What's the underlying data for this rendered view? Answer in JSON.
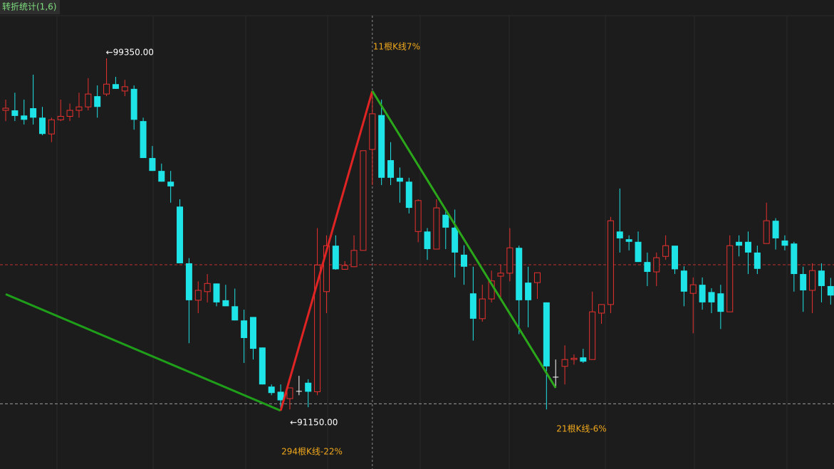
{
  "chart_data": {
    "type": "candlestick",
    "title": "转折统计(1,6)",
    "colors": {
      "up": "#e8312f",
      "down": "#1ee4e8",
      "flat": "#ffffff"
    },
    "candles": [
      [
        98140,
        98390,
        97890,
        98190
      ],
      [
        98140,
        98550,
        97890,
        98010
      ],
      [
        98020,
        98390,
        97810,
        97920
      ],
      [
        98190,
        98970,
        97810,
        97970
      ],
      [
        97970,
        98220,
        97560,
        97590
      ],
      [
        97590,
        97970,
        97400,
        97920
      ],
      [
        97920,
        98390,
        97890,
        98000
      ],
      [
        98000,
        98300,
        97890,
        98140
      ],
      [
        98140,
        98550,
        97970,
        98220
      ],
      [
        98220,
        98890,
        98140,
        98520
      ],
      [
        98470,
        98720,
        97970,
        98220
      ],
      [
        98520,
        99350,
        98470,
        98750
      ],
      [
        98750,
        98920,
        98640,
        98640
      ],
      [
        98590,
        98850,
        98470,
        98690
      ],
      [
        98640,
        98720,
        97690,
        97920
      ],
      [
        97890,
        97970,
        97030,
        97030
      ],
      [
        97030,
        97310,
        96730,
        96730
      ],
      [
        96730,
        96900,
        96480,
        96480
      ],
      [
        96480,
        96730,
        95990,
        96370
      ],
      [
        95900,
        96070,
        94580,
        94580
      ],
      [
        94580,
        94700,
        92720,
        93720
      ],
      [
        93720,
        94160,
        93420,
        93950
      ],
      [
        93920,
        94330,
        93670,
        94110
      ],
      [
        94110,
        94110,
        93580,
        93670
      ],
      [
        93720,
        94080,
        93580,
        93580
      ],
      [
        93580,
        93990,
        93250,
        93250
      ],
      [
        93250,
        93500,
        92260,
        92840
      ],
      [
        93330,
        93330,
        92340,
        92590
      ],
      [
        92620,
        92620,
        91760,
        91760
      ],
      [
        91710,
        91760,
        91510,
        91560
      ],
      [
        91590,
        91760,
        91150,
        91390
      ],
      [
        91430,
        91680,
        91180,
        91680
      ],
      [
        91600,
        91960,
        91510,
        91600
      ],
      [
        91800,
        91880,
        91230,
        91590
      ],
      [
        91590,
        95400,
        91510,
        94540
      ],
      [
        93920,
        95230,
        93420,
        94990
      ],
      [
        94990,
        95230,
        94430,
        94440
      ],
      [
        94440,
        94630,
        94430,
        94530
      ],
      [
        94500,
        95230,
        94490,
        94880
      ],
      [
        94880,
        97200,
        94880,
        97200
      ],
      [
        97230,
        98590,
        96400,
        98060
      ],
      [
        98030,
        98390,
        96400,
        96570
      ],
      [
        96980,
        97400,
        96400,
        96570
      ],
      [
        96570,
        96810,
        95990,
        96480
      ],
      [
        96480,
        96570,
        95740,
        95870
      ],
      [
        95320,
        96070,
        95070,
        96040
      ],
      [
        95320,
        95400,
        94660,
        94910
      ],
      [
        94910,
        96070,
        94910,
        95870
      ],
      [
        95710,
        95830,
        94910,
        95410
      ],
      [
        95410,
        95830,
        94250,
        94830
      ],
      [
        94780,
        95000,
        94080,
        94500
      ],
      [
        93880,
        94500,
        92780,
        93290
      ],
      [
        93290,
        94080,
        93220,
        93750
      ],
      [
        93750,
        94410,
        93670,
        94170
      ],
      [
        94280,
        94550,
        93750,
        94350
      ],
      [
        94350,
        95400,
        94160,
        94940
      ],
      [
        94940,
        94990,
        92930,
        93720
      ],
      [
        94130,
        94500,
        93090,
        93720
      ],
      [
        94130,
        94360,
        93750,
        94360
      ],
      [
        93670,
        93670,
        91180,
        92180
      ],
      [
        91930,
        92340,
        91680,
        91930
      ],
      [
        92180,
        92670,
        91760,
        92340
      ],
      [
        92340,
        92460,
        92220,
        92370
      ],
      [
        92390,
        92590,
        92260,
        92290
      ],
      [
        92340,
        93920,
        92340,
        93450
      ],
      [
        93420,
        93620,
        93170,
        93620
      ],
      [
        93620,
        95660,
        93420,
        95570
      ],
      [
        95320,
        96320,
        94830,
        95160
      ],
      [
        95140,
        95230,
        94880,
        95080
      ],
      [
        95080,
        95320,
        94610,
        94610
      ],
      [
        94610,
        94830,
        94050,
        94380
      ],
      [
        94380,
        94830,
        94050,
        94710
      ],
      [
        94740,
        95230,
        94660,
        94990
      ],
      [
        94990,
        94990,
        94330,
        94440
      ],
      [
        94410,
        94510,
        93580,
        93920
      ],
      [
        93880,
        94250,
        92950,
        94080
      ],
      [
        94080,
        94250,
        93500,
        93670
      ],
      [
        93910,
        94000,
        93420,
        93670
      ],
      [
        93880,
        94080,
        93050,
        93450
      ],
      [
        93450,
        95230,
        93450,
        94990
      ],
      [
        95080,
        95230,
        94740,
        94990
      ],
      [
        95080,
        95320,
        94330,
        94830
      ],
      [
        94830,
        94990,
        94330,
        94450
      ],
      [
        95040,
        95990,
        95040,
        95570
      ],
      [
        95570,
        95630,
        94900,
        95160
      ],
      [
        95110,
        95230,
        94880,
        94990
      ],
      [
        95040,
        95080,
        93920,
        94330
      ],
      [
        94330,
        94500,
        93450,
        93950
      ],
      [
        93950,
        94580,
        93420,
        94410
      ],
      [
        94410,
        94580,
        93670,
        94050
      ],
      [
        94050,
        94240,
        93620,
        93830
      ]
    ],
    "extremes": [
      {
        "index": 11,
        "value": 99350,
        "label": "←99350.00",
        "kind": "high"
      },
      {
        "index": 30,
        "value": 91150,
        "label": "←91150.00",
        "kind": "low"
      }
    ],
    "zigzag": {
      "points": [
        {
          "index": 0,
          "value": 93860
        },
        {
          "index": 30,
          "value": 91150
        },
        {
          "index": 40,
          "value": 98590
        },
        {
          "index": 60,
          "value": 91680
        }
      ],
      "colors": [
        "#1f9e1a",
        "#e02424",
        "#2aa81a"
      ],
      "labels": [
        "294根K线-22%",
        "11根K线7%",
        "21根K线-6%"
      ],
      "label_color": "#f0a81c"
    },
    "reference_lines": [
      {
        "value": 94545,
        "color": "#c03030"
      },
      {
        "value": 91310,
        "color": "#9a9a9a"
      }
    ],
    "crosshair_index": 40
  }
}
